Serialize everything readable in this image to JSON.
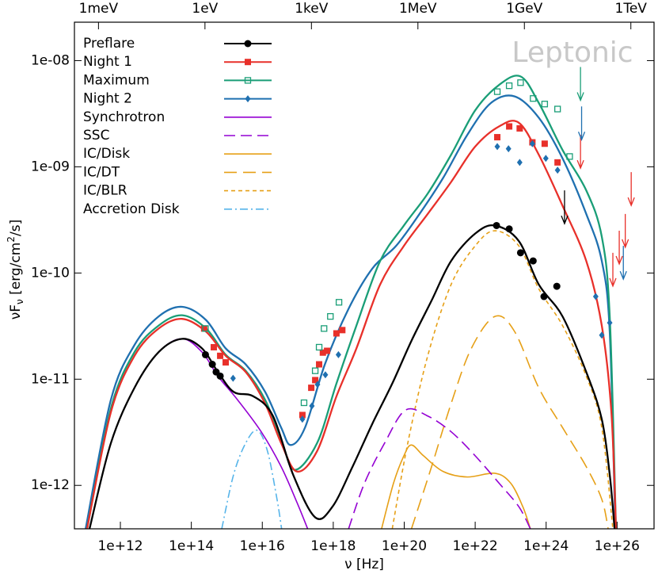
{
  "chart_data": {
    "type": "sed",
    "annotation": "Leptonic",
    "x_label": "ν [Hz]",
    "y_label": [
      "νF",
      "ν",
      " [erg/cm",
      "2",
      "/s]"
    ],
    "xscale": "log",
    "yscale": "log",
    "xlim": [
      50700000000.0,
      1.1e+27
    ],
    "ylim": [
      3.9e-13,
      2.3e-08
    ],
    "x2lim": [
      0.00021,
      4500000000000.0
    ],
    "xticks": [
      {
        "value": 1000000000000.0,
        "label": "1e+12"
      },
      {
        "value": 100000000000000.0,
        "label": "1e+14"
      },
      {
        "value": 1e+16,
        "label": "1e+16"
      },
      {
        "value": 1e+18,
        "label": "1e+18"
      },
      {
        "value": 1e+20,
        "label": "1e+20"
      },
      {
        "value": 1e+22,
        "label": "1e+22"
      },
      {
        "value": 1e+24,
        "label": "1e+24"
      },
      {
        "value": 1e+26,
        "label": "1e+26"
      }
    ],
    "yticks": [
      {
        "value": 1e-12,
        "label": "1e-12"
      },
      {
        "value": 1e-11,
        "label": "1e-11"
      },
      {
        "value": 1e-10,
        "label": "1e-10"
      },
      {
        "value": 1e-09,
        "label": "1e-09"
      },
      {
        "value": 1e-08,
        "label": "1e-08"
      }
    ],
    "x2ticks": [
      {
        "value": 0.001,
        "label": "1meV"
      },
      {
        "value": 1,
        "label": "1eV"
      },
      {
        "value": 1000,
        "label": "1keV"
      },
      {
        "value": 1000000,
        "label": "1MeV"
      },
      {
        "value": 1000000000,
        "label": "1GeV"
      },
      {
        "value": 1000000000000,
        "label": "1TeV"
      }
    ],
    "legend": "upper left",
    "series": [
      {
        "name": "Preflare",
        "color": "#000000",
        "dash": "solid",
        "marker": "circle",
        "model": {
          "x": [
            135000000000.0,
            540000000000.0,
            2500000000000.0,
            12000000000000.0,
            55000000000000.0,
            200000000000000.0,
            560000000000000.0,
            1550000000000000.0,
            5600000000000000.0,
            2e+16,
            7.4e+16,
            3.1e+17,
            9.5e+17,
            3.5e+18,
            1.26e+19,
            4.6e+19,
            1.6e+20,
            5.9e+20,
            2.1e+21,
            1e+22,
            3.6e+22,
            1.7e+23,
            6.2e+23,
            2.9e+24,
            1.35e+25,
            3.7e+25,
            6.2e+25,
            8.5e+25
          ],
          "values": [
            3.9e-13,
            2.5e-12,
            8.3e-12,
            1.8e-11,
            2.4e-11,
            1.95e-11,
            1.17e-11,
            7.6e-12,
            6.9e-12,
            4.5e-12,
            1.26e-12,
            5e-13,
            6.3e-13,
            1.5e-12,
            3.8e-12,
            9.1e-12,
            2.3e-11,
            5.5e-11,
            1.3e-10,
            2.35e-10,
            2.8e-10,
            2e-10,
            7.8e-11,
            3.9e-11,
            1.17e-11,
            4.2e-12,
            1.26e-12,
            3.9e-13
          ]
        },
        "points": {
          "x": [
            250000000000000.0,
            390000000000000.0,
            500000000000000.0,
            650000000000000.0,
            4e+22,
            9.1e+22,
            1.9e+23,
            4.3e+23,
            8.7e+23,
            2e+24
          ],
          "values": [
            1.7e-11,
            1.38e-11,
            1.17e-11,
            1.07e-11,
            2.8e-10,
            2.6e-10,
            1.55e-10,
            1.3e-10,
            6e-11,
            7.5e-11
          ]
        },
        "upper_limits": {
          "x": [
            3.3e+24
          ],
          "values": [
            6e-10
          ]
        }
      },
      {
        "name": "Night 1",
        "color": "#e8302a",
        "dash": "solid",
        "marker": "square",
        "model": {
          "x": [
            115000000000.0,
            540000000000.0,
            2500000000000.0,
            12000000000000.0,
            55000000000000.0,
            260000000000000.0,
            930000000000000.0,
            3400000000000000.0,
            1.2e+16,
            3.4e+16,
            9.5e+16,
            3.5e+17,
            1.23e+18,
            4.5e+18,
            2.1e+19,
            9.8e+19,
            4.6e+20,
            2.1e+21,
            1e+22,
            4.7e+22,
            1.7e+23,
            6.2e+23,
            2.9e+24,
            1.35e+25,
            3.7e+25,
            6.9e+25,
            9.3e+25
          ],
          "values": [
            3.9e-13,
            4.9e-12,
            1.66e-11,
            3e-11,
            3.7e-11,
            2.8e-11,
            1.66e-11,
            1.17e-11,
            5.9e-12,
            2.5e-12,
            1.35e-12,
            2.1e-12,
            6.9e-12,
            1.95e-11,
            7.8e-11,
            1.8e-10,
            3.6e-10,
            7.2e-10,
            1.55e-09,
            2.4e-09,
            2.6e-09,
            1.3e-09,
            4.3e-10,
            1.3e-10,
            3.2e-11,
            4.9e-12,
            3.9e-13
          ]
        },
        "points": {
          "x": [
            230000000000000.0,
            430000000000000.0,
            650000000000000.0,
            930000000000000.0,
            1.35e+17,
            2.4e+17,
            3.1e+17,
            4e+17,
            5.1e+17,
            6.7e+17,
            1.23e+18,
            1.8e+18,
            4.2e+22,
            9.1e+22,
            1.8e+23,
            4.1e+23,
            9.1e+23,
            2.1e+24
          ],
          "values": [
            3e-11,
            2e-11,
            1.66e-11,
            1.44e-11,
            4.6e-12,
            8.3e-12,
            9.8e-12,
            1.38e-11,
            1.78e-11,
            1.85e-11,
            2.7e-11,
            2.9e-11,
            1.9e-09,
            2.4e-09,
            2.3e-09,
            1.7e-09,
            1.65e-09,
            1.1e-09
          ]
        },
        "upper_limits": {
          "x": [
            9.3e+24,
            2.5e+26,
            1.7e+26,
            1.15e+26,
            7.6e+25
          ],
          "values": [
            2e-09,
            8.9e-10,
            3.6e-10,
            2.5e-10,
            1.55e-10
          ]
        }
      },
      {
        "name": "Maximum",
        "color": "#1a9e77",
        "dash": "solid",
        "marker": "open-square",
        "model": {
          "x": [
            115000000000.0,
            540000000000.0,
            2500000000000.0,
            12000000000000.0,
            55000000000000.0,
            260000000000000.0,
            930000000000000.0,
            3400000000000000.0,
            1.2e+16,
            3.4e+16,
            8.1e+16,
            3.5e+17,
            1.23e+18,
            4.5e+18,
            2.1e+19,
            9.8e+19,
            4.6e+20,
            2.1e+21,
            1e+22,
            4.7e+22,
            1.9e+23,
            6.2e+23,
            2.9e+24,
            1.35e+25,
            3.7e+25,
            6.2e+25,
            9.3e+25
          ],
          "values": [
            3.9e-13,
            5.3e-12,
            1.8e-11,
            3.2e-11,
            4e-11,
            3e-11,
            1.7e-11,
            1.2e-11,
            6.4e-12,
            2.7e-12,
            1.4e-12,
            2.5e-12,
            9.1e-12,
            3.2e-11,
            1.3e-10,
            2.8e-10,
            5.6e-10,
            1.3e-09,
            3.4e-09,
            5.9e-09,
            7.1e-09,
            4e-09,
            1.44e-09,
            6e-10,
            2.2e-10,
            3.9e-11,
            3.9e-13
          ]
        },
        "points": {
          "x": [
            250000000000000.0,
            1.5e+17,
            3.1e+17,
            4e+17,
            5.5e+17,
            8.3e+17,
            1.45e+18,
            4.2e+22,
            9.1e+22,
            1.9e+23,
            4.3e+23,
            9.1e+23,
            2.1e+24,
            4.6e+24
          ],
          "values": [
            3e-11,
            6e-12,
            1.2e-11,
            2e-11,
            3e-11,
            3.9e-11,
            5.3e-11,
            5.1e-09,
            5.8e-09,
            6.2e-09,
            4.4e-09,
            3.9e-09,
            3.5e-09,
            1.25e-09
          ]
        },
        "upper_limits": {
          "x": [
            9.3e+24
          ],
          "values": [
            8.7e-09
          ]
        }
      },
      {
        "name": "Night 2",
        "color": "#1f70b0",
        "dash": "solid",
        "marker": "diamond",
        "model": {
          "x": [
            105000000000.0,
            540000000000.0,
            2500000000000.0,
            12000000000000.0,
            55000000000000.0,
            260000000000000.0,
            930000000000000.0,
            3400000000000000.0,
            1.2e+16,
            3.4e+16,
            6.3e+16,
            1.6e+17,
            5.8e+17,
            2.7e+18,
            1.26e+19,
            5.9e+19,
            2.7e+20,
            1.26e+21,
            6e+21,
            2.8e+22,
            1.3e+23,
            6.2e+23,
            2.9e+24,
            1.35e+25,
            3.7e+25,
            6.2e+25,
            8.9e+25
          ],
          "values": [
            3.9e-13,
            6.4e-12,
            2.1e-11,
            3.9e-11,
            4.8e-11,
            3.6e-11,
            1.95e-11,
            1.38e-11,
            7.6e-12,
            3.5e-12,
            2.4e-12,
            3.5e-12,
            1.38e-11,
            4.6e-11,
            1.1e-10,
            1.8e-10,
            3.6e-10,
            7.9e-10,
            2e-09,
            4e-09,
            4.6e-09,
            2.9e-09,
            1.2e-09,
            3.6e-10,
            1.3e-10,
            2.8e-11,
            3.9e-13
          ]
        },
        "points": {
          "x": [
            1500000000000000.0,
            1.35e+17,
            2.5e+17,
            3.6e+17,
            6e+17,
            1.4e+18,
            4.2e+22,
            8.7e+22,
            1.8e+23,
            4.1e+23,
            9.8e+23,
            2.1e+24,
            2.5e+25,
            3.7e+25,
            6.2e+25
          ],
          "values": [
            1.02e-11,
            4.2e-12,
            5.6e-12,
            8.9e-12,
            1.1e-11,
            1.7e-11,
            1.55e-09,
            1.48e-09,
            1.1e-09,
            1.65e-09,
            1.2e-09,
            9.3e-10,
            6e-11,
            2.6e-11,
            3.4e-11
          ]
        },
        "upper_limits": {
          "x": [
            1e+25,
            1.5e+26
          ],
          "values": [
            3.7e-09,
            1.8e-10
          ]
        }
      },
      {
        "name": "Synchrotron",
        "color": "#9400d3",
        "dash": "solid",
        "model": {
          "x": [
            135000000000.0,
            540000000000.0,
            2500000000000.0,
            12000000000000.0,
            55000000000000.0,
            200000000000000.0,
            560000000000000.0,
            2000000000000000.0,
            9300000000000000.0,
            3.4e+16,
            9.5e+16,
            1.9e+17
          ],
          "values": [
            3.9e-13,
            2.5e-12,
            8.3e-12,
            1.8e-11,
            2.4e-11,
            1.8e-11,
            1.07e-11,
            6.4e-12,
            3.2e-12,
            1.5e-12,
            6.9e-13,
            3.9e-13
          ]
        }
      },
      {
        "name": "SSC",
        "color": "#9400d3",
        "dash": "dash",
        "model": {
          "x": [
            2.7e+18,
            7.6e+18,
            2.8e+19,
            1.07e+20,
            4.6e+20,
            2.1e+21,
            1e+22,
            4.7e+22,
            1.7e+23,
            3.6e+23
          ],
          "values": [
            3.9e-13,
            1.05e-12,
            2.5e-12,
            5.1e-12,
            4.5e-12,
            3.2e-12,
            1.9e-12,
            1.05e-12,
            6.3e-13,
            3.9e-13
          ]
        }
      },
      {
        "name": "IC/Disk",
        "color": "#e6a017",
        "dash": "solid",
        "model": {
          "x": [
            2.3e+19,
            5e+19,
            9.8e+19,
            1.6e+20,
            3.5e+20,
            1.26e+21,
            6e+21,
            3.6e+22,
            1e+23,
            2.2e+23,
            3.6e+23
          ],
          "values": [
            3.9e-13,
            1.05e-12,
            1.9e-12,
            2.4e-12,
            1.9e-12,
            1.35e-12,
            1.2e-12,
            1.3e-12,
            1.05e-12,
            6.3e-13,
            3.9e-13
          ]
        }
      },
      {
        "name": "IC/DT",
        "color": "#e6a017",
        "dash": "long-dash",
        "model": {
          "x": [
            1.6e+20,
            5.9e+20,
            2.1e+21,
            7.8e+21,
            3.6e+22,
            1.3e+23,
            6.2e+23,
            2.9e+24,
            1.35e+25,
            3.7e+25,
            5.6e+25
          ],
          "values": [
            3.9e-13,
            1.5e-12,
            5.9e-12,
            1.95e-11,
            3.9e-11,
            2.8e-11,
            8.3e-12,
            3.5e-12,
            1.5e-12,
            7.4e-13,
            3.9e-13
          ]
        }
      },
      {
        "name": "IC/BLR",
        "color": "#e6a017",
        "dash": "short-dash",
        "model": {
          "x": [
            4.6e+19,
            1.26e+20,
            4.6e+20,
            2.1e+21,
            1e+22,
            3.6e+22,
            1.7e+23,
            6.2e+23,
            2.9e+24,
            1.35e+25,
            3.7e+25,
            7.6e+25
          ],
          "values": [
            3.9e-13,
            2.5e-12,
            1.66e-11,
            7.8e-11,
            1.8e-10,
            2.5e-10,
            1.8e-10,
            7.1e-11,
            3.2e-11,
            1.07e-11,
            3.5e-12,
            3.9e-13
          ]
        }
      },
      {
        "name": "Accretion Disk",
        "color": "#56b4e9",
        "dash": "dash-dot",
        "model": {
          "x": [
            720000000000000.0,
            1550000000000000.0,
            3400000000000000.0,
            7200000000000000.0,
            1.4e+16,
            2.6e+16,
            3.5e+16
          ],
          "values": [
            3.9e-13,
            1.26e-12,
            2.5e-12,
            3.3e-12,
            2.1e-12,
            7.4e-13,
            3.9e-13
          ]
        }
      }
    ]
  }
}
